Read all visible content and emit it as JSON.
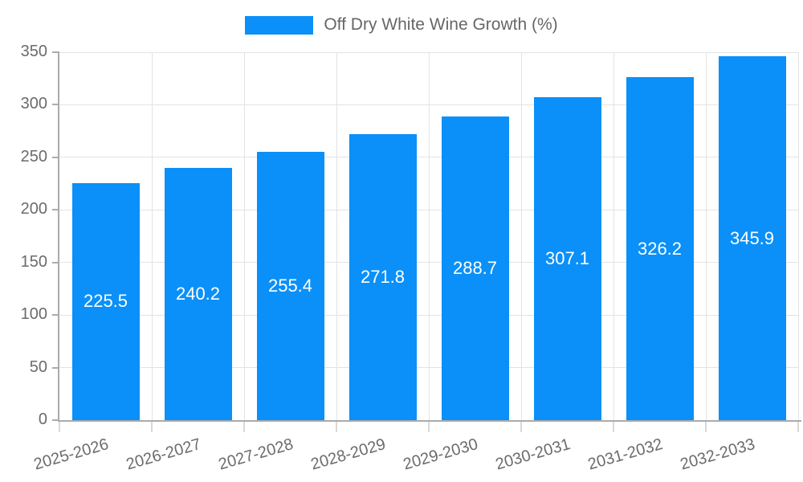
{
  "chart_data": {
    "type": "bar",
    "title": "",
    "legend": "Off Dry White Wine Growth (%)",
    "legend_position": "top-center",
    "categories": [
      "2025-2026",
      "2026-2027",
      "2027-2028",
      "2028-2029",
      "2029-2030",
      "2030-2031",
      "2031-2032",
      "2032-2033"
    ],
    "series": [
      {
        "name": "Off Dry White Wine Growth (%)",
        "values": [
          225.5,
          240.2,
          255.4,
          271.8,
          288.7,
          307.1,
          326.2,
          345.9
        ]
      }
    ],
    "values": [
      225.5,
      240.2,
      255.4,
      271.8,
      288.7,
      307.1,
      326.2,
      345.9
    ],
    "xlabel": "",
    "ylabel": "",
    "ylim": [
      0,
      350
    ],
    "yticks": [
      0,
      50,
      100,
      150,
      200,
      250,
      300,
      350
    ],
    "grid": true,
    "value_labels_inside_bars": true,
    "x_label_rotation_deg": -16,
    "colors": {
      "bar": "#0a90f8",
      "value_label": "#ffffff",
      "axis_line": "#ababab",
      "x_tick": "#d9d9d9",
      "grid_line": "#e3e3e3",
      "tick_text": "#6b6b6b",
      "legend_text": "#666666",
      "background": "#ffffff"
    }
  }
}
